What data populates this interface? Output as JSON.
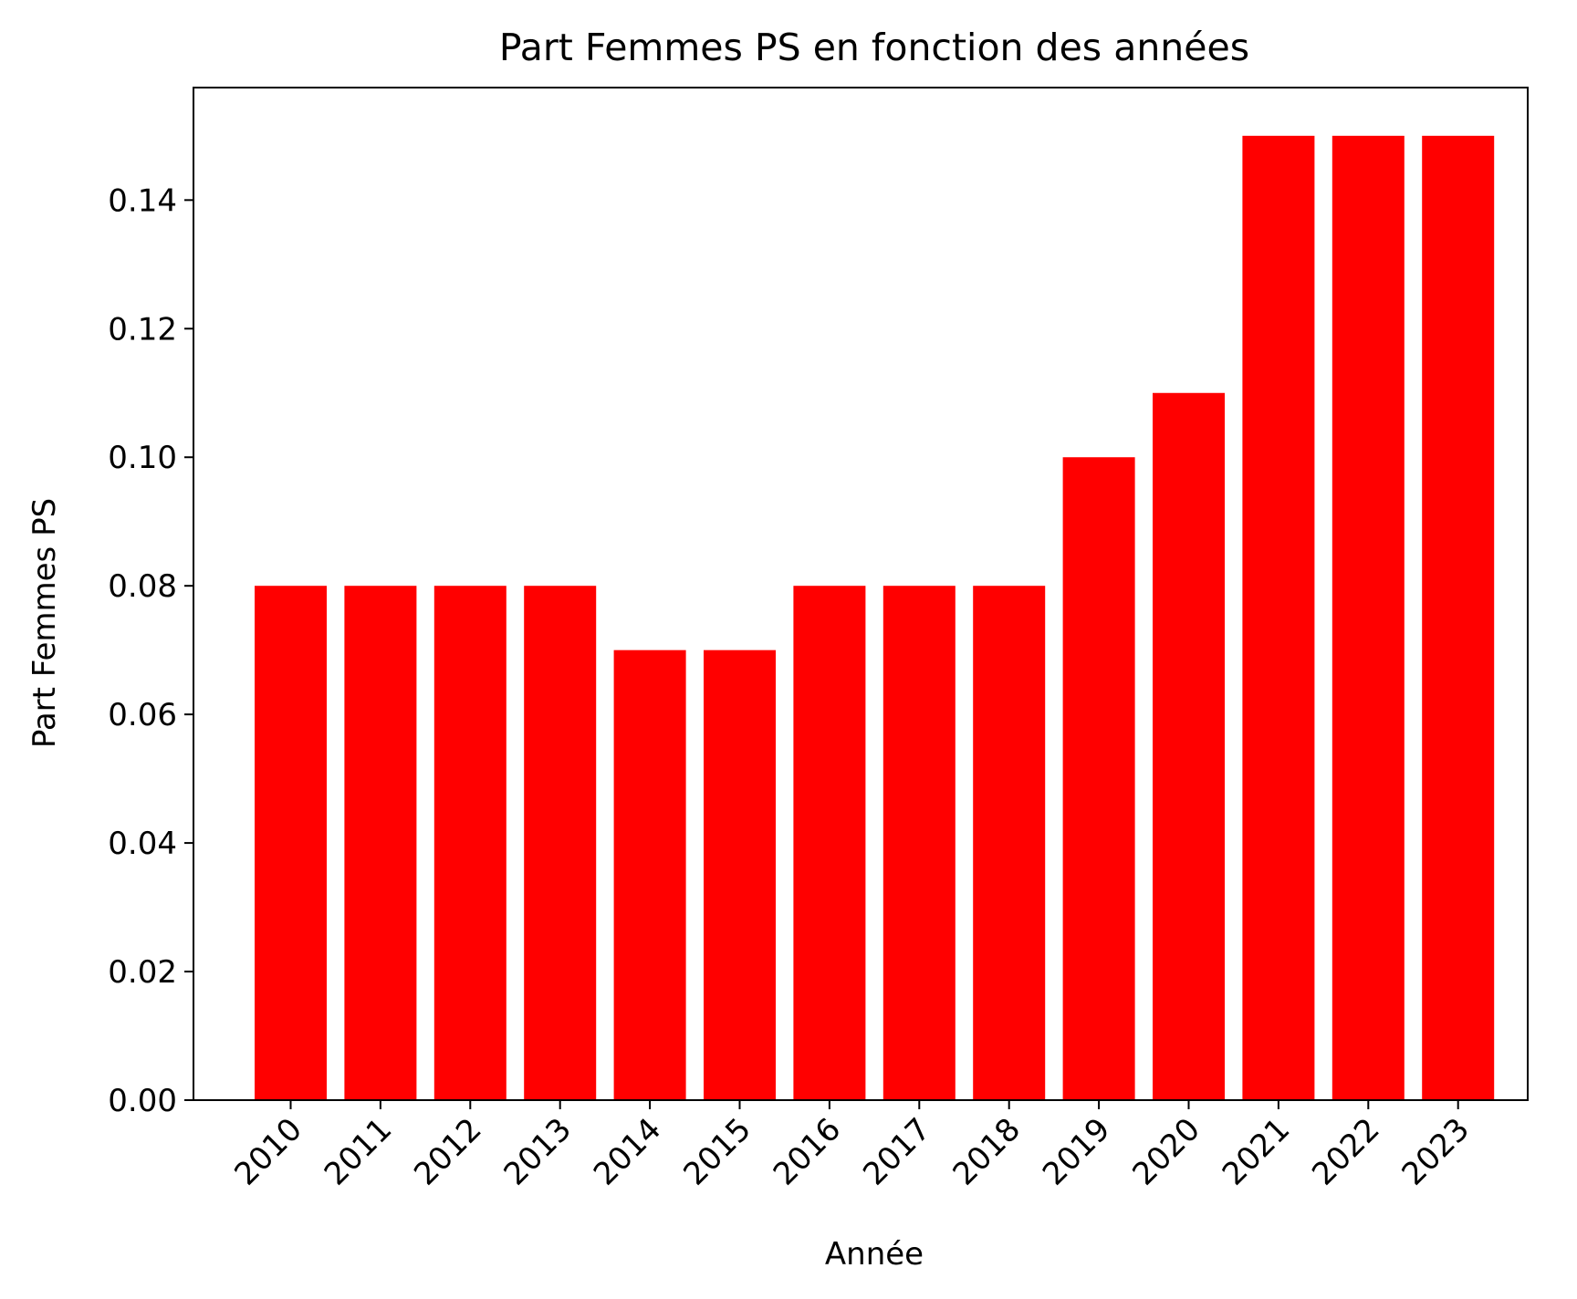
{
  "chart_data": {
    "type": "bar",
    "title": "Part Femmes PS en fonction des années",
    "xlabel": "Année",
    "ylabel": "Part Femmes PS",
    "categories": [
      "2010",
      "2011",
      "2012",
      "2013",
      "2014",
      "2015",
      "2016",
      "2017",
      "2018",
      "2019",
      "2020",
      "2021",
      "2022",
      "2023"
    ],
    "values": [
      0.08,
      0.08,
      0.08,
      0.08,
      0.07,
      0.07,
      0.08,
      0.08,
      0.08,
      0.1,
      0.11,
      0.15,
      0.15,
      0.15
    ],
    "ylim": [
      0,
      0.1575
    ],
    "yticks": [
      "0.00",
      "0.02",
      "0.04",
      "0.06",
      "0.08",
      "0.10",
      "0.12",
      "0.14"
    ],
    "bar_color": "#ff0000",
    "grid": false,
    "legend": "none"
  }
}
